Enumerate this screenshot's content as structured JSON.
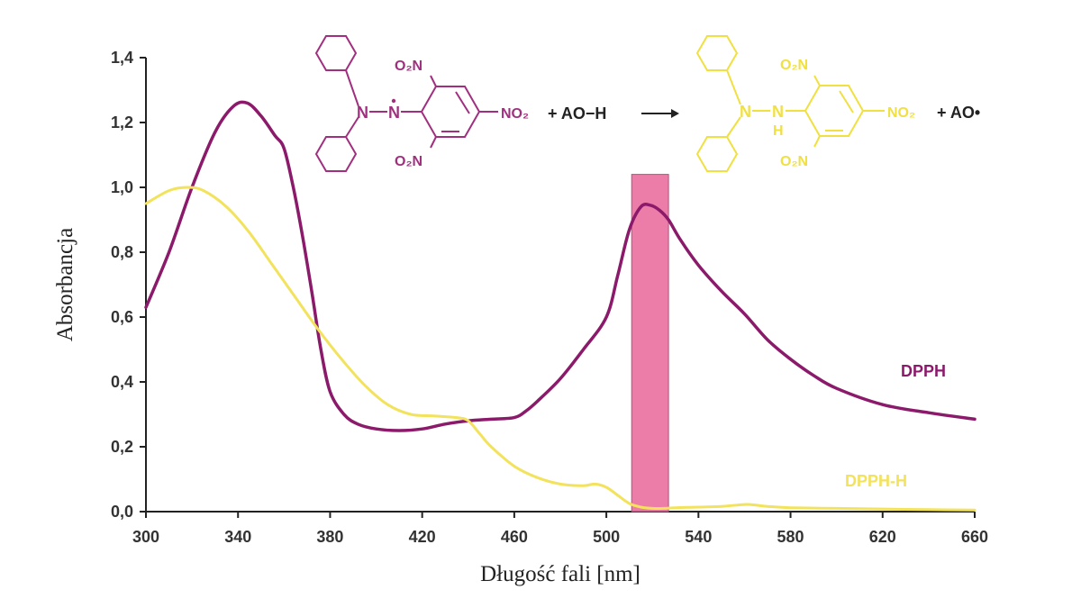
{
  "chart_data": {
    "type": "line",
    "xlabel": "Długość fali [nm]",
    "ylabel": "Absorbancja",
    "xlim": [
      300,
      660
    ],
    "ylim": [
      0,
      1.4
    ],
    "x_ticks": [
      300,
      340,
      380,
      420,
      460,
      500,
      540,
      580,
      620,
      660
    ],
    "x_tick_labels": [
      "300",
      "340",
      "380",
      "420",
      "460",
      "500",
      "540",
      "580",
      "620",
      "660"
    ],
    "y_ticks": [
      0,
      0.2,
      0.4,
      0.6,
      0.8,
      1.0,
      1.2,
      1.4
    ],
    "y_tick_labels": [
      "0,0",
      "0,2",
      "0,4",
      "0,6",
      "0,8",
      "1,0",
      "1,2",
      "1,4"
    ],
    "grid": false,
    "highlight_band": {
      "x_range": [
        511,
        527
      ],
      "y_top": 1.04,
      "color": "#e9669a"
    },
    "series": [
      {
        "name": "DPPH",
        "color": "#8b1a6b",
        "x": [
          300,
          310,
          320,
          330,
          338,
          344,
          350,
          356,
          360,
          364,
          368,
          372,
          376,
          380,
          386,
          392,
          400,
          410,
          420,
          430,
          440,
          450,
          460,
          465,
          470,
          480,
          490,
          500,
          505,
          510,
          515,
          519,
          523,
          527,
          532,
          540,
          550,
          560,
          570,
          580,
          590,
          600,
          620,
          640,
          660
        ],
        "y": [
          0.63,
          0.8,
          1.0,
          1.17,
          1.25,
          1.26,
          1.22,
          1.16,
          1.12,
          1.0,
          0.85,
          0.68,
          0.5,
          0.37,
          0.3,
          0.27,
          0.255,
          0.25,
          0.255,
          0.27,
          0.28,
          0.285,
          0.29,
          0.31,
          0.34,
          0.41,
          0.5,
          0.6,
          0.73,
          0.87,
          0.94,
          0.945,
          0.93,
          0.9,
          0.84,
          0.76,
          0.68,
          0.61,
          0.53,
          0.47,
          0.42,
          0.38,
          0.33,
          0.305,
          0.285
        ]
      },
      {
        "name": "DPPH-H",
        "color": "#f2e25c",
        "x": [
          300,
          310,
          318,
          325,
          335,
          345,
          355,
          365,
          375,
          385,
          395,
          405,
          415,
          425,
          435,
          440,
          445,
          450,
          460,
          470,
          480,
          490,
          495,
          500,
          505,
          510,
          515,
          520,
          525,
          530,
          540,
          550,
          560,
          565,
          570,
          580,
          600,
          620,
          640,
          660
        ],
        "y": [
          0.95,
          0.99,
          1.0,
          0.99,
          0.94,
          0.86,
          0.76,
          0.66,
          0.56,
          0.47,
          0.39,
          0.33,
          0.3,
          0.295,
          0.29,
          0.28,
          0.24,
          0.2,
          0.14,
          0.105,
          0.085,
          0.08,
          0.085,
          0.075,
          0.05,
          0.025,
          0.014,
          0.01,
          0.01,
          0.012,
          0.014,
          0.016,
          0.022,
          0.02,
          0.016,
          0.012,
          0.01,
          0.008,
          0.006,
          0.005
        ]
      }
    ],
    "series_labels": [
      "DPPH",
      "DPPH-H"
    ]
  },
  "reaction": {
    "reactant_no2_top": "O₂N",
    "reactant_no2_bottom": "O₂N",
    "reactant_no2_right": "NO₂",
    "reactant_n1": "N",
    "reactant_n2": "N",
    "reactant_plus": "+ AO−H",
    "arrow": "⟶",
    "product_no2_top": "O₂N",
    "product_no2_bottom": "O₂N",
    "product_no2_right": "NO₂",
    "product_n1": "N",
    "product_n2": "N",
    "product_h": "H",
    "product_plus": "+ AO•",
    "reactant_color": "#a0307f",
    "product_color": "#f0e040"
  }
}
